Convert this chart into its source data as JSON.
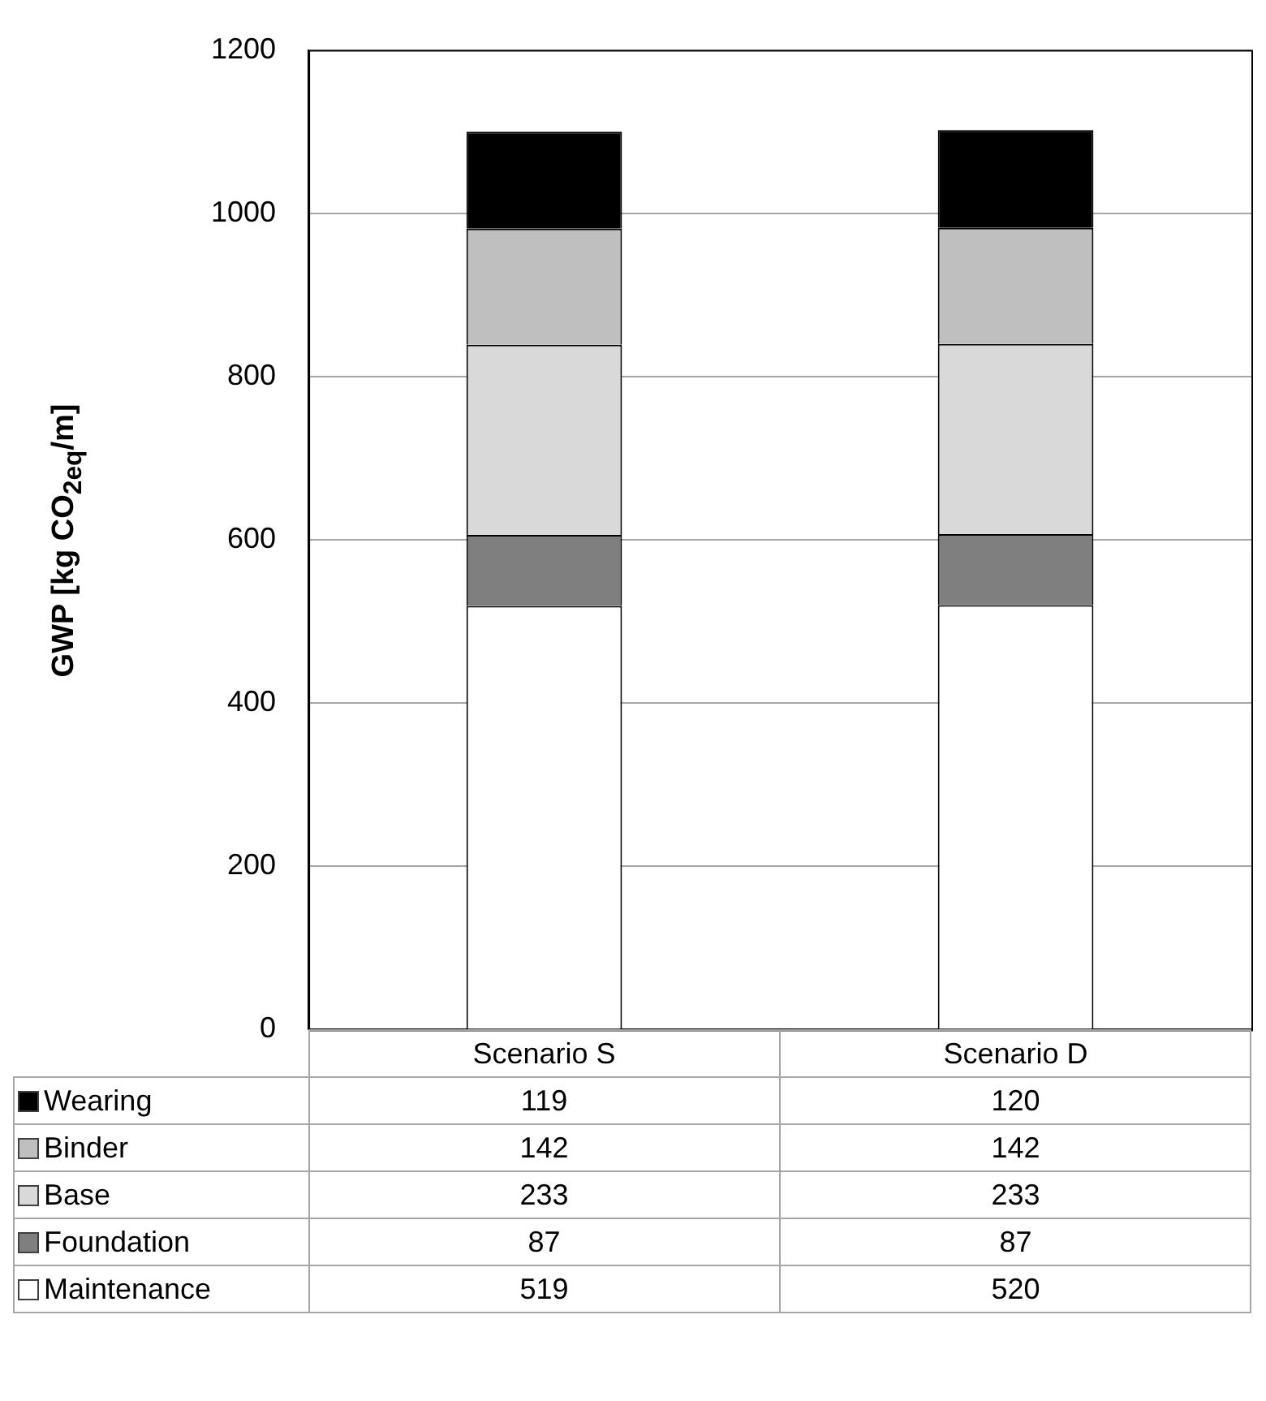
{
  "chart_data": {
    "type": "bar",
    "stacked": true,
    "ylabel": "GWP [kg CO$_{2eq}$/m]",
    "categories": [
      "Scenario S",
      "Scenario D"
    ],
    "series": [
      {
        "name": "Maintenance",
        "color": "#ffffff",
        "values": [
          519,
          520
        ]
      },
      {
        "name": "Foundation",
        "color": "#7f7f7f",
        "values": [
          87,
          87
        ]
      },
      {
        "name": "Base",
        "color": "#d9d9d9",
        "values": [
          233,
          233
        ]
      },
      {
        "name": "Binder",
        "color": "#bfbfbf",
        "values": [
          142,
          142
        ]
      },
      {
        "name": "Wearing",
        "color": "#000000",
        "values": [
          119,
          120
        ]
      }
    ],
    "ylim": [
      0,
      1200
    ],
    "yticks": [
      0,
      200,
      400,
      600,
      800,
      1000,
      1200
    ],
    "grid": "y",
    "legend": "bottom left",
    "data_labels": true
  }
}
